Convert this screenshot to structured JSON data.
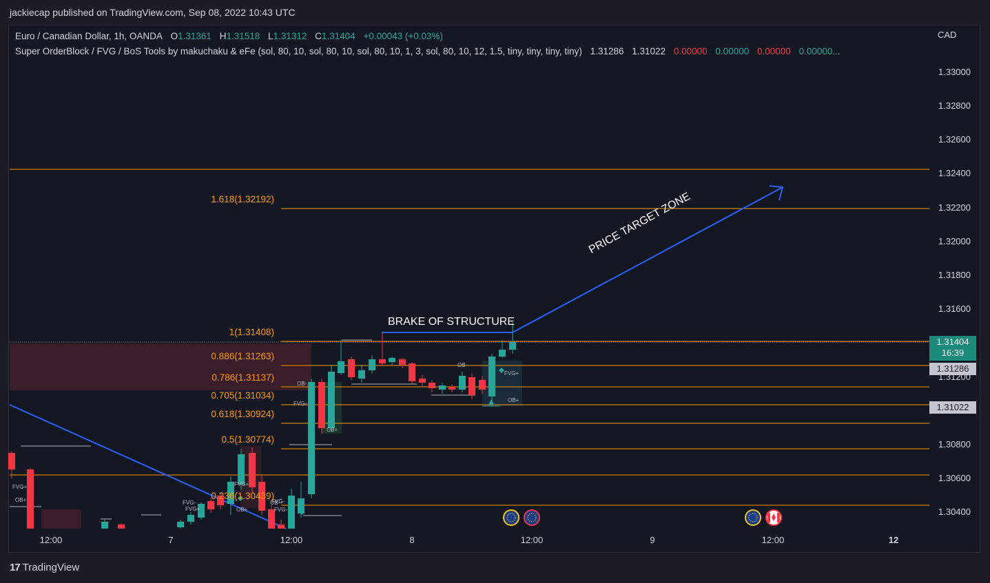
{
  "caption": "jackiecap published on TradingView.com, Sep 08, 2022 10:43 UTC",
  "legend": {
    "symbol": "Euro / Canadian Dollar, 1h, OANDA",
    "o_label": "O",
    "o_value": "1.31361",
    "h_label": "H",
    "h_value": "1.31518",
    "l_label": "L",
    "l_value": "1.31312",
    "c_label": "C",
    "c_value": "1.31404",
    "change": "+0.00043 (+0.03%)",
    "indicator": "Super OrderBlock / FVG / BoS Tools by makuchaku & eFe (sol, 80, 10, sol, 80, 10, sol, 80, 10, 1, 3, sol, 80, 10, 12, 1.5, tiny, tiny, tiny, tiny)",
    "ind_v1": "1.31286",
    "ind_v2": "1.31022",
    "ind_v3": "0.00000",
    "ind_v4": "0.00000",
    "ind_v5": "0.00000",
    "ind_v6": "0.00000..."
  },
  "axis": {
    "currency": "CAD",
    "prices": [
      "1.33000",
      "1.32800",
      "1.32600",
      "1.32400",
      "1.32200",
      "1.32000",
      "1.31800",
      "1.31600",
      "1.31200",
      "1.30800",
      "1.30600",
      "1.30400"
    ],
    "current_price": "1.31404",
    "countdown": "16:39",
    "tag_1": "1.31286",
    "tag_2": "1.31022"
  },
  "time_axis": [
    "12:00",
    "7",
    "12:00",
    "8",
    "12:00",
    "9",
    "12:00",
    "12"
  ],
  "fib_levels": [
    {
      "label": "1.618(1.32192)"
    },
    {
      "label": "1(1.31408)"
    },
    {
      "label": "0.886(1.31263)"
    },
    {
      "label": "0.786(1.31137)"
    },
    {
      "label": "0.705(1.31034)"
    },
    {
      "label": "0.618(1.30924)"
    },
    {
      "label": "0.5(1.30774)"
    },
    {
      "label": "0.236(1.30439)"
    }
  ],
  "annotations": {
    "bos": "BRAKE OF STRUCTURE",
    "target": "PRICE TARGET ZONE"
  },
  "chart_labels": [
    "FVG+",
    "OB+",
    "FVG-",
    "OB-",
    "FVG-",
    "FVG+",
    "OB+",
    "FVG+",
    "FVG-",
    "OB-",
    "OB+",
    "FVG+",
    "OB+",
    "OB-",
    "FVG-"
  ],
  "brand": "TradingView",
  "colors": {
    "up": "#26a69a",
    "down": "#f23645",
    "fib": "#ff9800",
    "trend": "#2962ff",
    "background": "#131722"
  }
}
